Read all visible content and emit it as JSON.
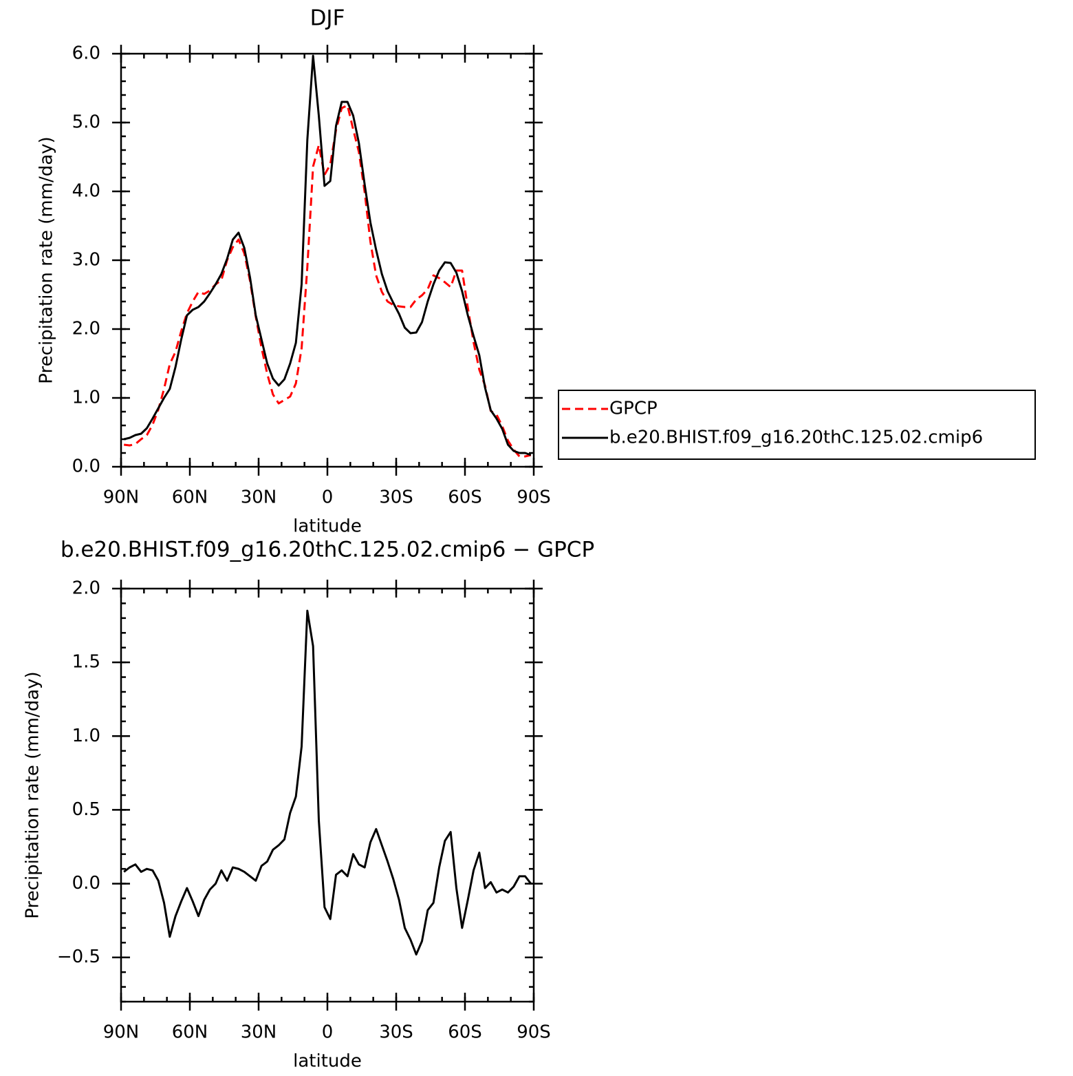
{
  "chart_data": [
    {
      "type": "line",
      "title": "DJF",
      "xlabel": "latitude",
      "ylabel": "Precipitation rate (mm/day)",
      "x": [
        88.75,
        86.25,
        83.75,
        81.25,
        78.75,
        76.25,
        73.75,
        71.25,
        68.75,
        66.25,
        63.75,
        61.25,
        58.75,
        56.25,
        53.75,
        51.25,
        48.75,
        46.25,
        43.75,
        41.25,
        38.75,
        36.25,
        33.75,
        31.25,
        28.75,
        26.25,
        23.75,
        21.25,
        18.75,
        16.25,
        13.75,
        11.25,
        8.75,
        6.25,
        3.75,
        1.25,
        -1.25,
        -3.75,
        -6.25,
        -8.75,
        -11.25,
        -13.75,
        -16.25,
        -18.75,
        -21.25,
        -23.75,
        -26.25,
        -28.75,
        -31.25,
        -33.75,
        -36.25,
        -38.75,
        -41.25,
        -43.75,
        -46.25,
        -48.75,
        -51.25,
        -53.75,
        -56.25,
        -58.75,
        -61.25,
        -63.75,
        -66.25,
        -68.75,
        -71.25,
        -73.75,
        -76.25,
        -78.75,
        -81.25,
        -83.75,
        -86.25,
        -88.75
      ],
      "series": [
        {
          "name": "GPCP",
          "color": "#ff0000",
          "dash": true,
          "values": [
            0.32,
            0.31,
            0.33,
            0.4,
            0.46,
            0.61,
            0.83,
            1.13,
            1.49,
            1.67,
            1.97,
            2.23,
            2.4,
            2.54,
            2.51,
            2.56,
            2.65,
            2.71,
            3.0,
            3.19,
            3.3,
            3.1,
            2.7,
            2.18,
            1.73,
            1.35,
            1.05,
            0.92,
            0.97,
            1.02,
            1.21,
            1.72,
            2.9,
            4.36,
            4.67,
            4.24,
            4.39,
            4.89,
            5.21,
            5.25,
            4.9,
            4.57,
            3.99,
            3.27,
            2.78,
            2.54,
            2.4,
            2.35,
            2.33,
            2.32,
            2.32,
            2.43,
            2.49,
            2.58,
            2.78,
            2.74,
            2.68,
            2.61,
            2.85,
            2.85,
            2.31,
            1.81,
            1.41,
            1.18,
            0.81,
            0.76,
            0.59,
            0.38,
            0.25,
            0.15,
            0.15,
            0.17
          ]
        },
        {
          "name": "b.e20.BHIST.f09_g16.20thC.125.02.cmip6",
          "color": "#000000",
          "dash": false,
          "values": [
            0.4,
            0.42,
            0.46,
            0.48,
            0.56,
            0.7,
            0.85,
            1.0,
            1.13,
            1.45,
            1.85,
            2.2,
            2.28,
            2.32,
            2.4,
            2.52,
            2.65,
            2.8,
            3.02,
            3.3,
            3.4,
            3.18,
            2.75,
            2.2,
            1.85,
            1.5,
            1.28,
            1.18,
            1.27,
            1.5,
            1.8,
            2.65,
            4.75,
            5.97,
            5.1,
            4.08,
            4.15,
            4.95,
            5.3,
            5.3,
            5.1,
            4.7,
            4.1,
            3.55,
            3.15,
            2.8,
            2.55,
            2.38,
            2.22,
            2.02,
            1.94,
            1.95,
            2.1,
            2.4,
            2.65,
            2.85,
            2.97,
            2.96,
            2.82,
            2.55,
            2.2,
            1.9,
            1.62,
            1.15,
            0.82,
            0.7,
            0.55,
            0.32,
            0.23,
            0.2,
            0.2,
            0.17
          ]
        }
      ],
      "xlim": [
        90,
        -90
      ],
      "xticks": [
        {
          "value": 90,
          "label": "90N"
        },
        {
          "value": 60,
          "label": "60N"
        },
        {
          "value": 30,
          "label": "30N"
        },
        0,
        {
          "value": -30,
          "label": "30S"
        },
        {
          "value": -60,
          "label": "60S"
        },
        {
          "value": -90,
          "label": "90S"
        }
      ],
      "ylim": [
        0,
        6
      ],
      "yticks": [
        {
          "value": 0,
          "label": "0.0"
        },
        {
          "value": 1,
          "label": "1.0"
        },
        {
          "value": 2,
          "label": "2.0"
        },
        {
          "value": 3,
          "label": "3.0"
        },
        {
          "value": 4,
          "label": "4.0"
        },
        {
          "value": 5,
          "label": "5.0"
        },
        {
          "value": 6,
          "label": "6.0"
        }
      ],
      "legend": "right"
    },
    {
      "type": "line",
      "title": "b.e20.BHIST.f09_g16.20thC.125.02.cmip6 − GPCP",
      "xlabel": "latitude",
      "ylabel": "Precipitation rate (mm/day)",
      "x": [
        88.75,
        86.25,
        83.75,
        81.25,
        78.75,
        76.25,
        73.75,
        71.25,
        68.75,
        66.25,
        63.75,
        61.25,
        58.75,
        56.25,
        53.75,
        51.25,
        48.75,
        46.25,
        43.75,
        41.25,
        38.75,
        36.25,
        33.75,
        31.25,
        28.75,
        26.25,
        23.75,
        21.25,
        18.75,
        16.25,
        13.75,
        11.25,
        8.75,
        6.25,
        3.75,
        1.25,
        -1.25,
        -3.75,
        -6.25,
        -8.75,
        -11.25,
        -13.75,
        -16.25,
        -18.75,
        -21.25,
        -23.75,
        -26.25,
        -28.75,
        -31.25,
        -33.75,
        -36.25,
        -38.75,
        -41.25,
        -43.75,
        -46.25,
        -48.75,
        -51.25,
        -53.75,
        -56.25,
        -58.75,
        -61.25,
        -63.75,
        -66.25,
        -68.75,
        -71.25,
        -73.75,
        -76.25,
        -78.75,
        -81.25,
        -83.75,
        -86.25,
        -88.75
      ],
      "series": [
        {
          "color": "#000000",
          "dash": false,
          "values": [
            0.08,
            0.11,
            0.13,
            0.08,
            0.1,
            0.09,
            0.02,
            -0.13,
            -0.36,
            -0.22,
            -0.12,
            -0.03,
            -0.12,
            -0.22,
            -0.11,
            -0.04,
            0.0,
            0.09,
            0.02,
            0.11,
            0.1,
            0.08,
            0.05,
            0.02,
            0.12,
            0.15,
            0.23,
            0.26,
            0.3,
            0.48,
            0.59,
            0.93,
            1.85,
            1.61,
            0.43,
            -0.16,
            -0.24,
            0.06,
            0.09,
            0.05,
            0.2,
            0.13,
            0.11,
            0.28,
            0.37,
            0.26,
            0.15,
            0.03,
            -0.11,
            -0.3,
            -0.38,
            -0.48,
            -0.39,
            -0.18,
            -0.13,
            0.11,
            0.29,
            0.35,
            -0.03,
            -0.3,
            -0.11,
            0.09,
            0.21,
            -0.03,
            0.01,
            -0.06,
            -0.04,
            -0.06,
            -0.02,
            0.05,
            0.05,
            0.0
          ]
        }
      ],
      "xlim": [
        90,
        -90
      ],
      "xticks": [
        {
          "value": 90,
          "label": "90N"
        },
        {
          "value": 60,
          "label": "60N"
        },
        {
          "value": 30,
          "label": "30N"
        },
        0,
        {
          "value": -30,
          "label": "30S"
        },
        {
          "value": -60,
          "label": "60S"
        },
        {
          "value": -90,
          "label": "90S"
        }
      ],
      "ylim": [
        -0.8,
        2
      ],
      "yticks": [
        {
          "value": -0.5,
          "label": "−0.5"
        },
        {
          "value": 0,
          "label": "0.0"
        },
        {
          "value": 0.5,
          "label": "0.5"
        },
        {
          "value": 1,
          "label": "1.0"
        },
        {
          "value": 1.5,
          "label": "1.5"
        },
        {
          "value": 2,
          "label": "2.0"
        }
      ]
    }
  ]
}
